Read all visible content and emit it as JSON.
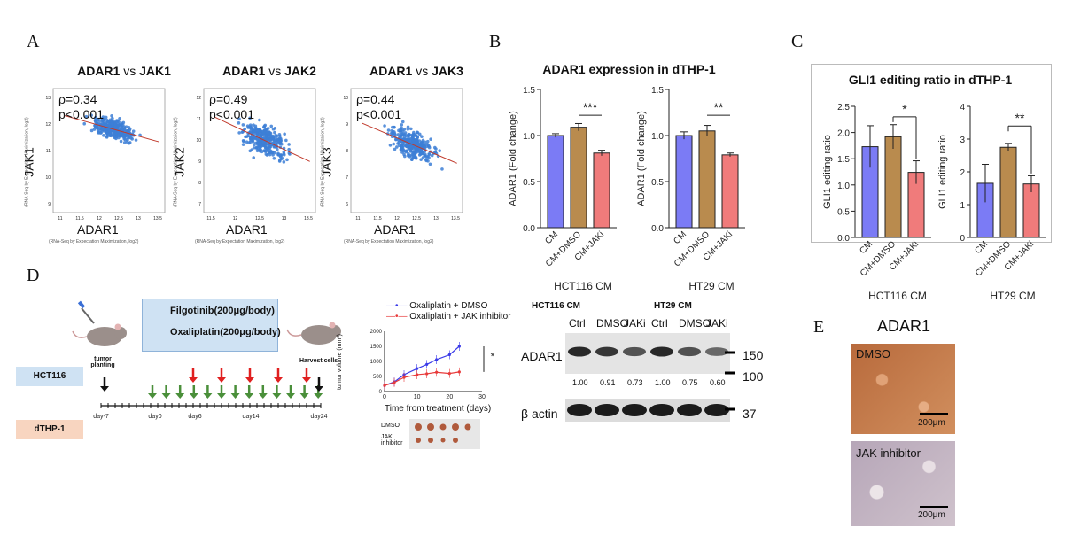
{
  "panels": {
    "A": "A",
    "B": "B",
    "C": "C",
    "D": "D",
    "E": "E"
  },
  "scatter": [
    {
      "title_prefix": "ADAR1",
      "vs": " vs ",
      "title_suffix": "JAK1",
      "rho": "ρ=0.34",
      "p": "p<0.001",
      "ylabel": "JAK1",
      "xlabel": "ADAR1",
      "ysub": "(RNA-Seq by Expectation Maximization, log2)",
      "xsub": "(RNA-Seq by Expectation Maximization, log2)",
      "xticks": [
        "11",
        "11.5",
        "12",
        "12.5",
        "13",
        "13.5"
      ],
      "yticks": [
        "9",
        "10",
        "11",
        "12",
        "13"
      ]
    },
    {
      "title_prefix": "ADAR1",
      "vs": " vs ",
      "title_suffix": "JAK2",
      "rho": "ρ=0.49",
      "p": "p<0.001",
      "ylabel": "JAK2",
      "xlabel": "ADAR1",
      "ysub": "(RNA-Seq by Expectation Maximization, log2)",
      "xsub": "(RNA-Seq by Expectation Maximization, log2)",
      "xticks": [
        "11.5",
        "12",
        "12.5",
        "13",
        "13.5"
      ],
      "yticks": [
        "7",
        "8",
        "9",
        "10",
        "11",
        "12"
      ]
    },
    {
      "title_prefix": "ADAR1",
      "vs": " vs ",
      "title_suffix": "JAK3",
      "rho": "ρ=0.44",
      "p": "p<0.001",
      "ylabel": "JAK3",
      "xlabel": "ADAR1",
      "ysub": "(RNA-Seq by Expectation Maximization, log2)",
      "xsub": "(RNA-Seq by Expectation Maximization, log2)",
      "xticks": [
        "11",
        "11.5",
        "12",
        "12.5",
        "13",
        "13.5"
      ],
      "yticks": [
        "6",
        "7",
        "8",
        "9",
        "10"
      ]
    }
  ],
  "panelB": {
    "title": "ADAR1 expression in dTHP-1",
    "ylabel": "ADAR1 (Fold change)",
    "charts": [
      {
        "group": "HCT116 CM",
        "sig": "***",
        "bars": [
          {
            "cat": "CM",
            "value": 1.0,
            "err": 0.02
          },
          {
            "cat": "CM+DMSO",
            "value": 1.09,
            "err": 0.04
          },
          {
            "cat": "CM+JAKi",
            "value": 0.81,
            "err": 0.03
          }
        ]
      },
      {
        "group": "HT29 CM",
        "sig": "**",
        "bars": [
          {
            "cat": "CM",
            "value": 1.0,
            "err": 0.04
          },
          {
            "cat": "CM+DMSO",
            "value": 1.05,
            "err": 0.06
          },
          {
            "cat": "CM+JAKi",
            "value": 0.79,
            "err": 0.02
          }
        ]
      }
    ],
    "yticks": [
      "0.0",
      "0.5",
      "1.0",
      "1.5"
    ],
    "ylim": [
      0,
      1.5
    ]
  },
  "panelC": {
    "title": "GLI1 editing ratio in dTHP-1",
    "ylabel": "GLI1 editing ratio",
    "charts": [
      {
        "group": "HCT116 CM",
        "sig": "*",
        "ylim": [
          0,
          2.5
        ],
        "yticks": [
          "0.0",
          "0.5",
          "1.0",
          "1.5",
          "2.0",
          "2.5"
        ],
        "bars": [
          {
            "cat": "CM",
            "value": 1.73,
            "err": 0.4
          },
          {
            "cat": "CM+DMSO",
            "value": 1.92,
            "err": 0.23
          },
          {
            "cat": "CM+JAKi",
            "value": 1.24,
            "err": 0.22
          }
        ]
      },
      {
        "group": "HT29 CM",
        "sig": "**",
        "ylim": [
          0,
          4
        ],
        "yticks": [
          "0",
          "1",
          "2",
          "3",
          "4"
        ],
        "bars": [
          {
            "cat": "CM",
            "value": 1.65,
            "err": 0.58
          },
          {
            "cat": "CM+DMSO",
            "value": 2.75,
            "err": 0.12
          },
          {
            "cat": "CM+JAKi",
            "value": 1.63,
            "err": 0.25
          }
        ]
      }
    ]
  },
  "colors": {
    "CM": "#7b7bf5",
    "CM+DMSO": "#b98b4e",
    "CM+JAKi": "#f07b7b"
  },
  "western": {
    "group1": "HCT116 CM",
    "group2": "HT29 CM",
    "lanes": [
      "Ctrl",
      "DMSO",
      "JAKi",
      "Ctrl",
      "DMSO",
      "JAKi"
    ],
    "protein1": "ADAR1",
    "protein2": "β actin",
    "quant": [
      "1.00",
      "0.91",
      "0.73",
      "1.00",
      "0.75",
      "0.60"
    ],
    "mw150": "150",
    "mw100": "100",
    "mw37": "37"
  },
  "panelD": {
    "legend_green": "Filgotinib(200μg/body)",
    "legend_red": "Oxaliplatin(200μg/body)",
    "tumor_planting": "tumor planting",
    "harvest": "Harvest cells",
    "hct116": "HCT116",
    "dthp1": "dTHP-1",
    "days": [
      "day-7",
      "day0",
      "day6",
      "day14",
      "day24"
    ],
    "line_legend1": "Oxaliplatin + DMSO",
    "line_legend2": "Oxaliplatin + JAK inhibitor",
    "ylabel": "tumor volume (mm³)",
    "xlabel": "Time from treatment (days)",
    "sig": "*",
    "yticks": [
      "0",
      "500",
      "1000",
      "1500",
      "2000"
    ],
    "xticks": [
      "0",
      "10",
      "20",
      "30"
    ],
    "dmso": "DMSO",
    "jak": "JAK inhibitor"
  },
  "chart_data": [
    {
      "type": "line",
      "title": "tumor volume",
      "xlabel": "Time from treatment (days)",
      "ylabel": "tumor volume (mm³)",
      "ylim": [
        0,
        2000
      ],
      "xlim": [
        0,
        30
      ],
      "series": [
        {
          "name": "Oxaliplatin + DMSO",
          "x": [
            0,
            3,
            6,
            10,
            13,
            16,
            20,
            23
          ],
          "values": [
            200,
            320,
            560,
            760,
            900,
            1060,
            1220,
            1500
          ]
        },
        {
          "name": "Oxaliplatin + JAK inhibitor",
          "x": [
            0,
            3,
            6,
            10,
            13,
            16,
            20,
            23
          ],
          "values": [
            200,
            300,
            470,
            560,
            590,
            640,
            600,
            650
          ]
        }
      ]
    }
  ],
  "panelE": {
    "title": "ADAR1",
    "dmso": "DMSO",
    "jak": "JAK inhibitor",
    "scale": "200μm"
  }
}
